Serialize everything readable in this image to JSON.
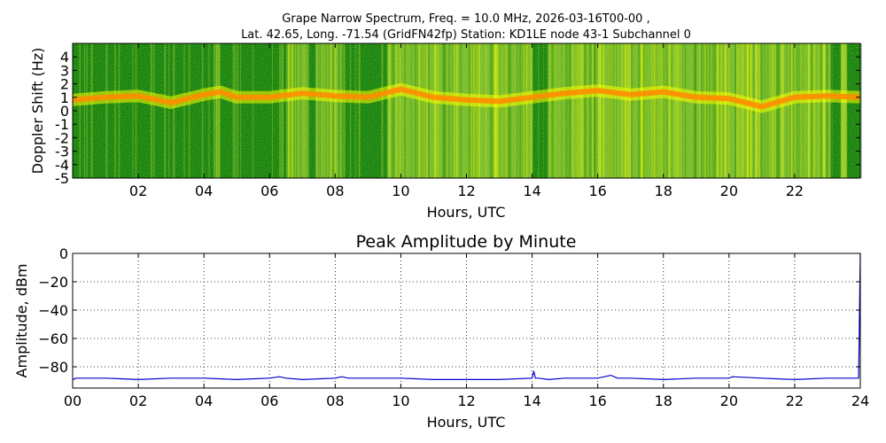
{
  "figure": {
    "title_line1": "Grape Narrow Spectrum, Freq. = 10.0 MHz, 2026-03-16T00-00 ,",
    "title_line2": "Lat.  42.65, Long. -71.54 (GridFN42fp) Station: KD1LE node 43-1 Subchannel 0"
  },
  "chart_data": [
    {
      "type": "heatmap",
      "title": "",
      "xlabel": "Hours, UTC",
      "ylabel": "Doppler Shift (Hz)",
      "xlim": [
        0,
        24
      ],
      "ylim": [
        -5,
        5
      ],
      "x_ticks": [
        "02",
        "04",
        "06",
        "08",
        "10",
        "12",
        "14",
        "16",
        "18",
        "20",
        "22"
      ],
      "x_tick_values": [
        2,
        4,
        6,
        8,
        10,
        12,
        14,
        16,
        18,
        20,
        22
      ],
      "y_ticks": [
        "4",
        "3",
        "2",
        "1",
        "0",
        "-1",
        "-2",
        "-3",
        "-4",
        "-5"
      ],
      "y_tick_values": [
        4,
        3,
        2,
        1,
        0,
        -1,
        -2,
        -3,
        -4,
        -5
      ],
      "grid": false,
      "colors": {
        "low": "#0a7a0a",
        "mid": "#9acd32",
        "high": "#ffff00",
        "peak": "#ff8c00"
      },
      "doppler_trace_hz": [
        {
          "t": 0,
          "f": 0.8
        },
        {
          "t": 1,
          "f": 1.0
        },
        {
          "t": 2,
          "f": 1.1
        },
        {
          "t": 3,
          "f": 0.6
        },
        {
          "t": 4,
          "f": 1.2
        },
        {
          "t": 4.5,
          "f": 1.4
        },
        {
          "t": 5,
          "f": 1.0
        },
        {
          "t": 6,
          "f": 1.0
        },
        {
          "t": 7,
          "f": 1.3
        },
        {
          "t": 8,
          "f": 1.1
        },
        {
          "t": 9,
          "f": 1.0
        },
        {
          "t": 10,
          "f": 1.6
        },
        {
          "t": 11,
          "f": 1.0
        },
        {
          "t": 12,
          "f": 0.8
        },
        {
          "t": 13,
          "f": 0.7
        },
        {
          "t": 14,
          "f": 1.0
        },
        {
          "t": 15,
          "f": 1.3
        },
        {
          "t": 16,
          "f": 1.5
        },
        {
          "t": 17,
          "f": 1.2
        },
        {
          "t": 18,
          "f": 1.4
        },
        {
          "t": 19,
          "f": 1.0
        },
        {
          "t": 20,
          "f": 0.9
        },
        {
          "t": 21,
          "f": 0.3
        },
        {
          "t": 22,
          "f": 1.0
        },
        {
          "t": 23,
          "f": 1.1
        },
        {
          "t": 24,
          "f": 1.0
        }
      ],
      "bright_bands_hours": [
        [
          4.3,
          4.5
        ],
        [
          6.5,
          7.2
        ],
        [
          7.4,
          8.3
        ],
        [
          9.6,
          10.3
        ],
        [
          10.3,
          11.8
        ],
        [
          11.8,
          14.0
        ],
        [
          14.5,
          15.5
        ],
        [
          15.5,
          17.3
        ],
        [
          17.3,
          20.6
        ],
        [
          20.6,
          23.1
        ],
        [
          23.4,
          23.6
        ]
      ]
    },
    {
      "type": "line",
      "title": "Peak Amplitude by Minute",
      "xlabel": "Hours, UTC",
      "ylabel": "Amplitude, dBm",
      "xlim": [
        0,
        24
      ],
      "ylim": [
        -95,
        0
      ],
      "x_ticks": [
        "00",
        "02",
        "04",
        "06",
        "08",
        "10",
        "12",
        "14",
        "16",
        "18",
        "20",
        "22",
        "24"
      ],
      "x_tick_values": [
        0,
        2,
        4,
        6,
        8,
        10,
        12,
        14,
        16,
        18,
        20,
        22,
        24
      ],
      "y_ticks": [
        "0",
        "−20",
        "−40",
        "−60",
        "−80"
      ],
      "y_tick_values": [
        0,
        -20,
        -40,
        -60,
        -80
      ],
      "grid": true,
      "line_color": "#0000cc",
      "series": [
        {
          "x": [
            0,
            0.1,
            0.5,
            1,
            2,
            3,
            4,
            5,
            6,
            6.3,
            6.5,
            7,
            8,
            8.2,
            8.4,
            9,
            10,
            11,
            12,
            13,
            14,
            14.05,
            14.1,
            14.2,
            14.5,
            15,
            16,
            16.4,
            16.6,
            17,
            18,
            19,
            20,
            20.1,
            21,
            22,
            23,
            23.9,
            23.95,
            24
          ],
          "y": [
            -89,
            -88,
            -88,
            -88,
            -89,
            -88,
            -88,
            -89,
            -88,
            -87,
            -88,
            -89,
            -88,
            -87,
            -88,
            -88,
            -88,
            -89,
            -89,
            -89,
            -88,
            -83,
            -88,
            -88,
            -89,
            -88,
            -88,
            -86,
            -88,
            -88,
            -89,
            -88,
            -88,
            -87,
            -88,
            -89,
            -88,
            -88,
            -88,
            0
          ]
        }
      ]
    }
  ]
}
